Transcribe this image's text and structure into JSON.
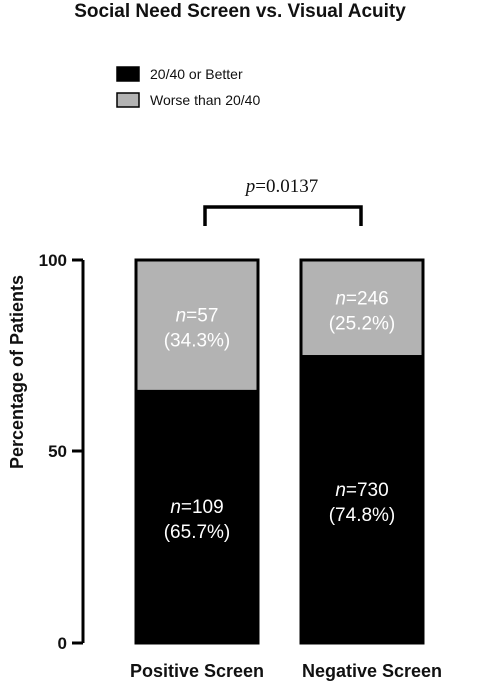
{
  "chart_data": {
    "type": "bar",
    "stacked": true,
    "title": "Social Need Screen vs. Visual Acuity",
    "ylabel": "Percentage  of Patients",
    "ylim": [
      0,
      100
    ],
    "yticks": [
      "0",
      "50",
      "100"
    ],
    "categories": [
      "Positive Screen",
      "Negative Screen"
    ],
    "legend_position": "top-left",
    "series": [
      {
        "name": "20/40 or Better",
        "color": "#000000",
        "values": [
          65.7,
          74.8
        ],
        "labels": [
          {
            "n_prefix": "n",
            "n_text": "=109",
            "pct": "(65.7%)"
          },
          {
            "n_prefix": "n",
            "n_text": "=730",
            "pct": "(74.8%)"
          }
        ]
      },
      {
        "name": "Worse than 20/40",
        "color": "#b3b3b3",
        "values": [
          34.3,
          25.2
        ],
        "labels": [
          {
            "n_prefix": "n",
            "n_text": "=57",
            "pct": "(34.3%)"
          },
          {
            "n_prefix": "n",
            "n_text": "=246",
            "pct": "(25.2%)"
          }
        ]
      }
    ],
    "significance": {
      "prefix": "p",
      "text": "=0.0137"
    }
  }
}
